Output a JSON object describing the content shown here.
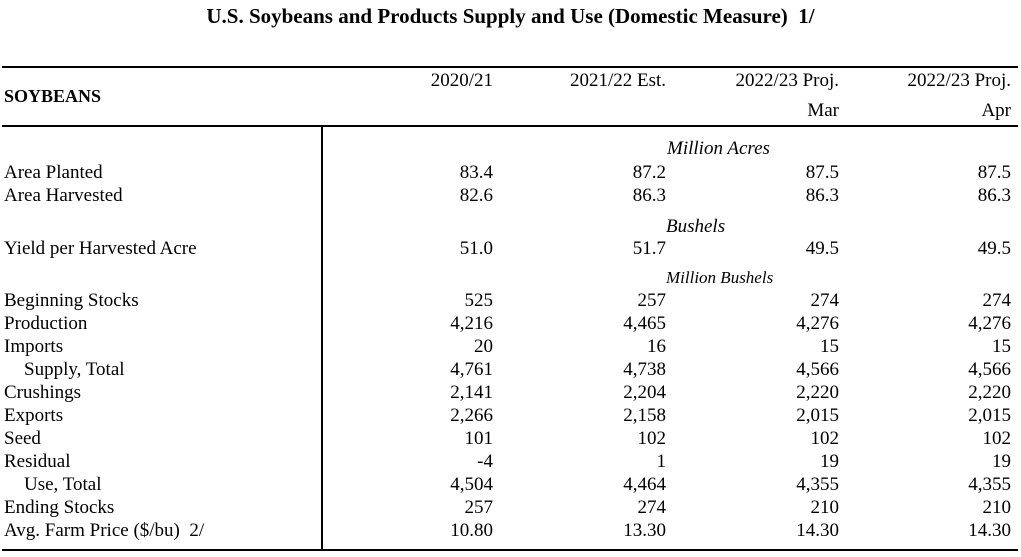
{
  "title": "U.S. Soybeans and Products Supply and Use (Domestic Measure)  1/",
  "section": "SOYBEANS",
  "columns": [
    {
      "line1": "2020/21",
      "line2": ""
    },
    {
      "line1": "2021/22 Est.",
      "line2": ""
    },
    {
      "line1": "2022/23 Proj.",
      "line2": "Mar"
    },
    {
      "line1": "2022/23 Proj.",
      "line2": "Apr"
    }
  ],
  "units": {
    "acres": "Million Acres",
    "bushels": "Bushels",
    "million_bushels": "Million Bushels"
  },
  "rows": [
    {
      "label": "Area Planted",
      "values": [
        "83.4",
        "87.2",
        "87.5",
        "87.5"
      ]
    },
    {
      "label": "Area Harvested",
      "values": [
        "82.6",
        "86.3",
        "86.3",
        "86.3"
      ]
    },
    {
      "label": "Yield per Harvested Acre",
      "values": [
        "51.0",
        "51.7",
        "49.5",
        "49.5"
      ]
    },
    {
      "label": "Beginning Stocks",
      "values": [
        "525",
        "257",
        "274",
        "274"
      ]
    },
    {
      "label": "Production",
      "values": [
        "4,216",
        "4,465",
        "4,276",
        "4,276"
      ]
    },
    {
      "label": "Imports",
      "values": [
        "20",
        "16",
        "15",
        "15"
      ]
    },
    {
      "label": "Supply, Total",
      "values": [
        "4,761",
        "4,738",
        "4,566",
        "4,566"
      ]
    },
    {
      "label": "Crushings",
      "values": [
        "2,141",
        "2,204",
        "2,220",
        "2,220"
      ]
    },
    {
      "label": "Exports",
      "values": [
        "2,266",
        "2,158",
        "2,015",
        "2,015"
      ]
    },
    {
      "label": "Seed",
      "values": [
        "101",
        "102",
        "102",
        "102"
      ]
    },
    {
      "label": "Residual",
      "values": [
        "-4",
        "1",
        "19",
        "19"
      ]
    },
    {
      "label": "Use, Total",
      "values": [
        "4,504",
        "4,464",
        "4,355",
        "4,355"
      ]
    },
    {
      "label": "Ending Stocks",
      "values": [
        "257",
        "274",
        "210",
        "210"
      ]
    },
    {
      "label": "Avg. Farm Price ($/bu)  2/",
      "values": [
        "10.80",
        "13.30",
        "14.30",
        "14.30"
      ]
    }
  ]
}
